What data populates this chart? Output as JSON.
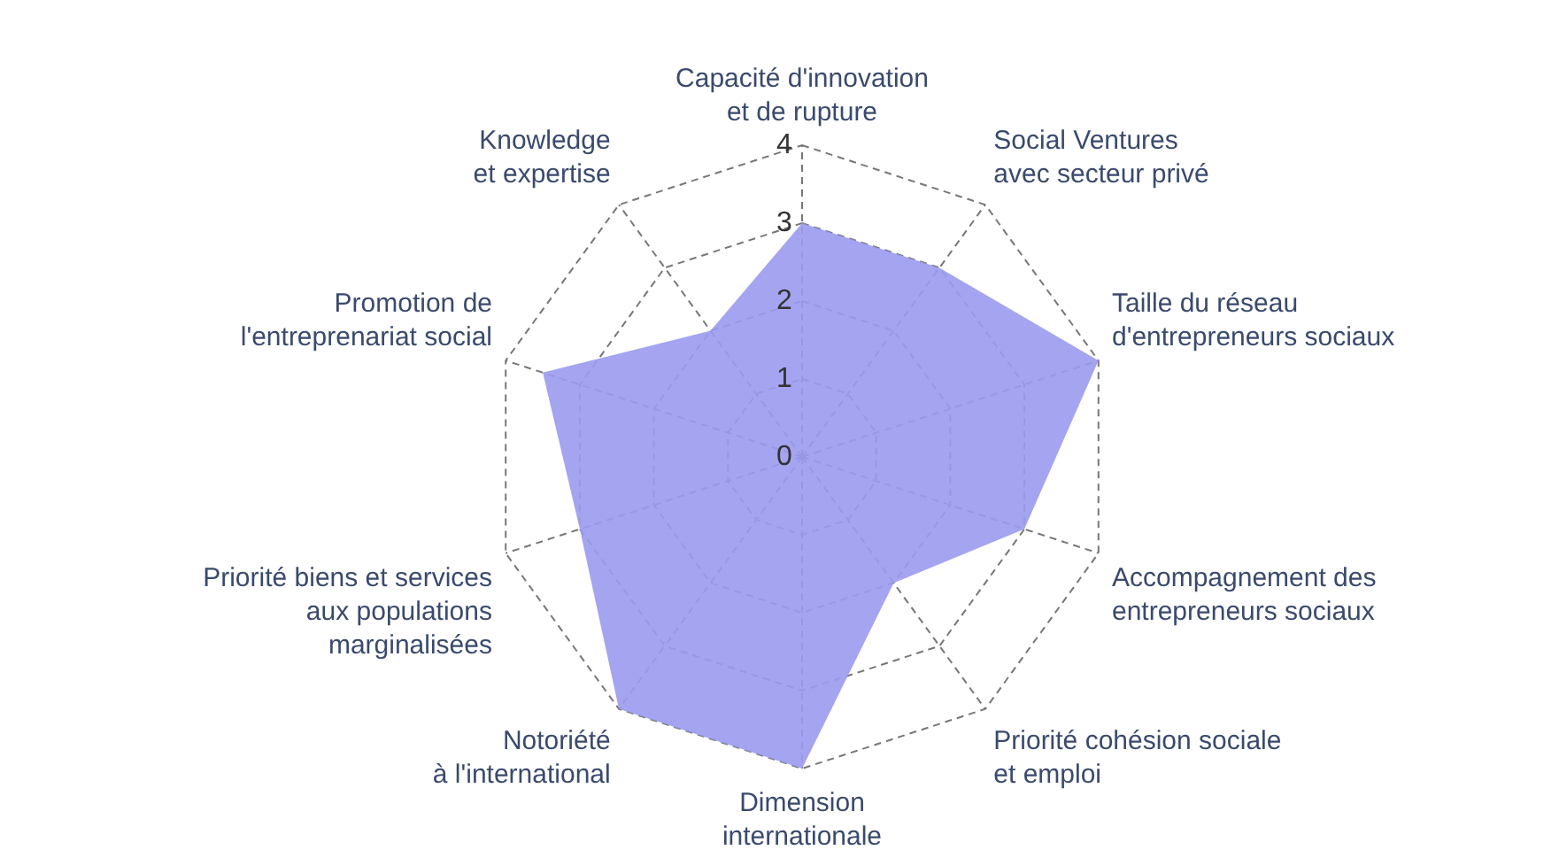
{
  "chart_data": {
    "type": "radar",
    "categories": [
      "Capacité d'innovation\net de rupture",
      "Social Ventures\navec secteur privé",
      "Taille du réseau\nd'entrepreneurs sociaux",
      "Accompagnement des\nentrepreneurs sociaux",
      "Priorité cohésion sociale\net emploi",
      "Dimension\ninternationale",
      "Notoriété\nà l'international",
      "Priorité biens et services\naux populations\nmarginalisées",
      "Promotion de\nl'entreprenariat social",
      "Knowledge\net expertise"
    ],
    "series": [
      {
        "color": "#9a9af0",
        "values": [
          3,
          3,
          4,
          3,
          2,
          4,
          4,
          3,
          3.5,
          2
        ]
      }
    ],
    "ylim": [
      0,
      4
    ],
    "yticks": [
      0,
      1,
      2,
      3,
      4
    ],
    "grid": true,
    "line_style": "dashed"
  }
}
